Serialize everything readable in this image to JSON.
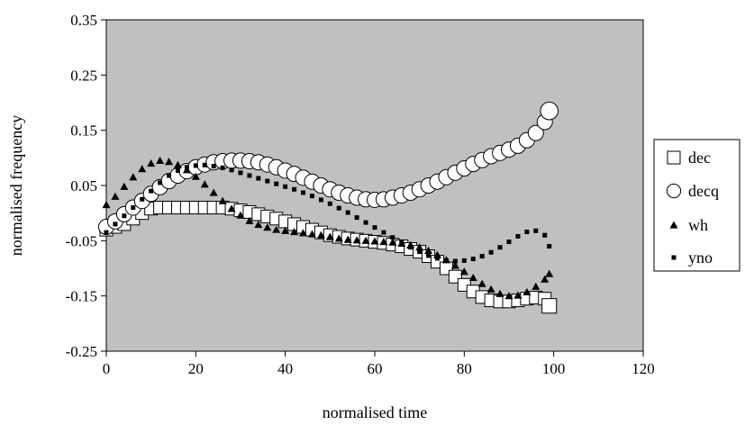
{
  "chart_data": {
    "type": "scatter",
    "title": "",
    "xlabel": "normalised time",
    "ylabel": "normalised frequency",
    "xlim": [
      0,
      120
    ],
    "ylim": [
      -0.25,
      0.35
    ],
    "x_ticks": [
      0,
      20,
      40,
      60,
      80,
      100,
      120
    ],
    "x_tick_labels": [
      "0",
      "20",
      "40",
      "60",
      "80",
      "100",
      "120"
    ],
    "y_ticks": [
      -0.25,
      -0.15,
      -0.05,
      0.05,
      0.15,
      0.25,
      0.35
    ],
    "y_tick_labels": [
      "-0.25",
      "-0.15",
      "-0.05",
      "0.05",
      "0.15",
      "0.25",
      "0.35"
    ],
    "grid": false,
    "plot_background": "#c0c0c0",
    "legend_position": "right",
    "series": [
      {
        "name": "dec",
        "marker": "square-open",
        "x": [
          0,
          2,
          4,
          6,
          8,
          10,
          12,
          14,
          16,
          18,
          20,
          22,
          24,
          26,
          28,
          30,
          32,
          34,
          36,
          38,
          40,
          42,
          44,
          46,
          48,
          50,
          52,
          54,
          56,
          58,
          60,
          62,
          64,
          66,
          68,
          70,
          72,
          74,
          76,
          78,
          80,
          82,
          84,
          86,
          88,
          90,
          92,
          94,
          96,
          98,
          99
        ],
        "y": [
          -0.03,
          -0.025,
          -0.02,
          -0.01,
          0,
          0.008,
          0.01,
          0.01,
          0.01,
          0.01,
          0.01,
          0.01,
          0.01,
          0.01,
          0.008,
          0.005,
          0.002,
          -0.002,
          -0.006,
          -0.01,
          -0.015,
          -0.02,
          -0.025,
          -0.03,
          -0.035,
          -0.04,
          -0.043,
          -0.046,
          -0.048,
          -0.05,
          -0.052,
          -0.054,
          -0.057,
          -0.06,
          -0.065,
          -0.07,
          -0.078,
          -0.088,
          -0.1,
          -0.115,
          -0.13,
          -0.142,
          -0.152,
          -0.158,
          -0.16,
          -0.16,
          -0.158,
          -0.155,
          -0.153,
          -0.155,
          -0.168
        ]
      },
      {
        "name": "decq",
        "marker": "circle-open",
        "x": [
          0,
          2,
          4,
          6,
          8,
          10,
          12,
          14,
          16,
          18,
          20,
          22,
          24,
          26,
          28,
          30,
          32,
          34,
          36,
          38,
          40,
          42,
          44,
          46,
          48,
          50,
          52,
          54,
          56,
          58,
          60,
          62,
          64,
          66,
          68,
          70,
          72,
          74,
          76,
          78,
          80,
          82,
          84,
          86,
          88,
          90,
          92,
          94,
          96,
          98,
          99
        ],
        "y": [
          -0.025,
          -0.015,
          -0.002,
          0.01,
          0.022,
          0.035,
          0.047,
          0.058,
          0.068,
          0.076,
          0.083,
          0.088,
          0.092,
          0.094,
          0.095,
          0.095,
          0.094,
          0.092,
          0.088,
          0.083,
          0.077,
          0.071,
          0.064,
          0.057,
          0.05,
          0.043,
          0.037,
          0.032,
          0.028,
          0.025,
          0.024,
          0.025,
          0.028,
          0.032,
          0.037,
          0.043,
          0.05,
          0.057,
          0.065,
          0.073,
          0.081,
          0.089,
          0.096,
          0.103,
          0.109,
          0.115,
          0.122,
          0.132,
          0.145,
          0.165,
          0.185
        ]
      },
      {
        "name": "wh",
        "marker": "triangle-filled",
        "x": [
          0,
          2,
          4,
          6,
          8,
          10,
          12,
          14,
          16,
          18,
          20,
          22,
          24,
          26,
          28,
          30,
          32,
          34,
          36,
          38,
          40,
          42,
          44,
          46,
          48,
          50,
          52,
          54,
          56,
          58,
          60,
          62,
          64,
          66,
          68,
          70,
          72,
          74,
          76,
          78,
          80,
          82,
          84,
          86,
          88,
          90,
          92,
          94,
          96,
          98,
          99
        ],
        "y": [
          0.015,
          0.03,
          0.048,
          0.065,
          0.08,
          0.09,
          0.095,
          0.093,
          0.087,
          0.078,
          0.066,
          0.052,
          0.037,
          0.022,
          0.008,
          -0.004,
          -0.014,
          -0.021,
          -0.026,
          -0.03,
          -0.032,
          -0.034,
          -0.036,
          -0.038,
          -0.04,
          -0.043,
          -0.046,
          -0.048,
          -0.049,
          -0.05,
          -0.051,
          -0.052,
          -0.053,
          -0.055,
          -0.058,
          -0.062,
          -0.068,
          -0.076,
          -0.085,
          -0.095,
          -0.106,
          -0.117,
          -0.128,
          -0.138,
          -0.146,
          -0.15,
          -0.149,
          -0.143,
          -0.133,
          -0.12,
          -0.11
        ]
      },
      {
        "name": "yno",
        "marker": "square-small-filled",
        "x": [
          0,
          2,
          4,
          6,
          8,
          10,
          12,
          14,
          16,
          18,
          20,
          22,
          24,
          26,
          28,
          30,
          32,
          34,
          36,
          38,
          40,
          42,
          44,
          46,
          48,
          50,
          52,
          54,
          56,
          58,
          60,
          62,
          64,
          66,
          68,
          70,
          72,
          74,
          76,
          78,
          80,
          82,
          84,
          86,
          88,
          90,
          92,
          94,
          96,
          98,
          99
        ],
        "y": [
          -0.035,
          -0.02,
          -0.005,
          0.01,
          0.025,
          0.04,
          0.055,
          0.068,
          0.077,
          0.083,
          0.086,
          0.087,
          0.085,
          0.082,
          0.078,
          0.073,
          0.068,
          0.063,
          0.058,
          0.053,
          0.048,
          0.043,
          0.037,
          0.031,
          0.024,
          0.017,
          0.009,
          0.001,
          -0.008,
          -0.017,
          -0.026,
          -0.035,
          -0.044,
          -0.053,
          -0.062,
          -0.07,
          -0.077,
          -0.082,
          -0.086,
          -0.087,
          -0.086,
          -0.083,
          -0.078,
          -0.071,
          -0.062,
          -0.052,
          -0.042,
          -0.034,
          -0.032,
          -0.04,
          -0.06
        ]
      }
    ]
  }
}
